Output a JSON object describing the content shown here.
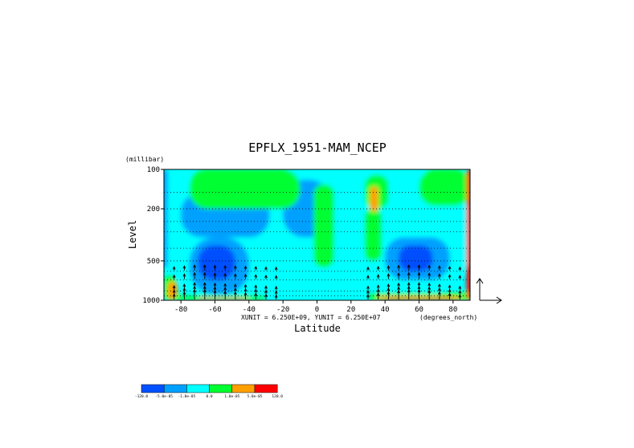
{
  "chart_data": {
    "type": "heatmap",
    "title": "EPFLX_1951-MAM_NCEP",
    "xlabel": "Latitude",
    "ylabel": "Level",
    "y_units_label": "(millibar)",
    "x_units_label": "(degrees_north)",
    "unit_note": "XUNIT = 6.250E+09, YUNIT = 6.250E+07",
    "xlim": [
      -90,
      90
    ],
    "ylim": [
      100,
      1000
    ],
    "y_scale": "log",
    "x_ticks": [
      -80,
      -60,
      -40,
      -20,
      0,
      20,
      40,
      60,
      80
    ],
    "y_ticks": [
      100,
      200,
      500,
      1000
    ],
    "x_tick_labels": [
      "-80",
      "-60",
      "-40",
      "-20",
      "0",
      "20",
      "40",
      "60",
      "80"
    ],
    "y_tick_labels": [
      "100",
      "200",
      "500",
      "1000"
    ],
    "grid": "dotted horizontal lines at pressure levels",
    "levels": [
      1000,
      925,
      850,
      700,
      600,
      500,
      400,
      300,
      250,
      200,
      150,
      100
    ],
    "colorbar": {
      "colors": [
        "#0050ff",
        "#00a0ff",
        "#00ffff",
        "#00ff30",
        "#ffa000",
        "#ff0000"
      ],
      "labels": [
        "-120.0",
        "-5.0e-05",
        "-1.0e-05",
        "0.0",
        "1.0e-05",
        "5.0e-05",
        "120.0"
      ]
    },
    "field_regions": [
      {
        "lat": [
          -90,
          90
        ],
        "p": [
          100,
          1000
        ],
        "class": 2
      },
      {
        "lat": [
          -80,
          -28
        ],
        "p": [
          150,
          330
        ],
        "class": 1
      },
      {
        "lat": [
          -75,
          -40
        ],
        "p": [
          330,
          900
        ],
        "class": 1
      },
      {
        "lat": [
          -70,
          -48
        ],
        "p": [
          380,
          700
        ],
        "class": 0
      },
      {
        "lat": [
          -20,
          8
        ],
        "p": [
          120,
          330
        ],
        "class": 1
      },
      {
        "lat": [
          40,
          78
        ],
        "p": [
          330,
          700
        ],
        "class": 1
      },
      {
        "lat": [
          48,
          68
        ],
        "p": [
          380,
          600
        ],
        "class": 0
      },
      {
        "lat": [
          -75,
          -10
        ],
        "p": [
          100,
          200
        ],
        "class": 3
      },
      {
        "lat": [
          60,
          90
        ],
        "p": [
          100,
          190
        ],
        "class": 3
      },
      {
        "lat": [
          28,
          42
        ],
        "p": [
          110,
          200
        ],
        "class": 3
      },
      {
        "lat": [
          -2,
          10
        ],
        "p": [
          130,
          560
        ],
        "class": 3
      },
      {
        "lat": [
          28,
          38
        ],
        "p": [
          200,
          500
        ],
        "class": 3
      },
      {
        "lat": [
          31,
          36
        ],
        "p": [
          135,
          210
        ],
        "class": 4
      },
      {
        "lat": [
          -90,
          -83
        ],
        "p": [
          650,
          1000
        ],
        "class": 3
      },
      {
        "lat": [
          -88,
          -82
        ],
        "p": [
          720,
          1000
        ],
        "class": 4
      },
      {
        "lat": [
          -84,
          -30
        ],
        "p": [
          920,
          1000
        ],
        "class": 3
      },
      {
        "lat": [
          -70,
          -40
        ],
        "p": [
          960,
          1000
        ],
        "class": 5
      },
      {
        "lat": [
          30,
          90
        ],
        "p": [
          880,
          1000
        ],
        "class": 3
      },
      {
        "lat": [
          35,
          85
        ],
        "p": [
          930,
          1000
        ],
        "class": 4
      },
      {
        "lat": [
          40,
          80
        ],
        "p": [
          960,
          1000
        ],
        "class": 5
      },
      {
        "lat": [
          -92,
          -88
        ],
        "p": [
          100,
          560
        ],
        "class": 1
      },
      {
        "lat": [
          88,
          92
        ],
        "p": [
          100,
          1000
        ],
        "class": 5
      }
    ],
    "vectors": {
      "lat": [
        -84,
        -78,
        -72,
        -66,
        -60,
        -54,
        -48,
        -42,
        -36,
        -30,
        -24,
        30,
        36,
        42,
        48,
        54,
        60,
        66,
        72,
        78,
        84
      ],
      "p_levels": [
        1000,
        925,
        850,
        700,
        600
      ],
      "direction": "upward",
      "strength": [
        0.4,
        0.7,
        1.0,
        1.0,
        0.9,
        0.8,
        0.7,
        0.6,
        0.5,
        0.35,
        0.25,
        0.3,
        0.5,
        0.7,
        0.9,
        1.0,
        1.0,
        0.9,
        0.7,
        0.5,
        0.3
      ]
    },
    "reference_vector": {
      "components": [
        "X",
        "Y"
      ]
    }
  }
}
